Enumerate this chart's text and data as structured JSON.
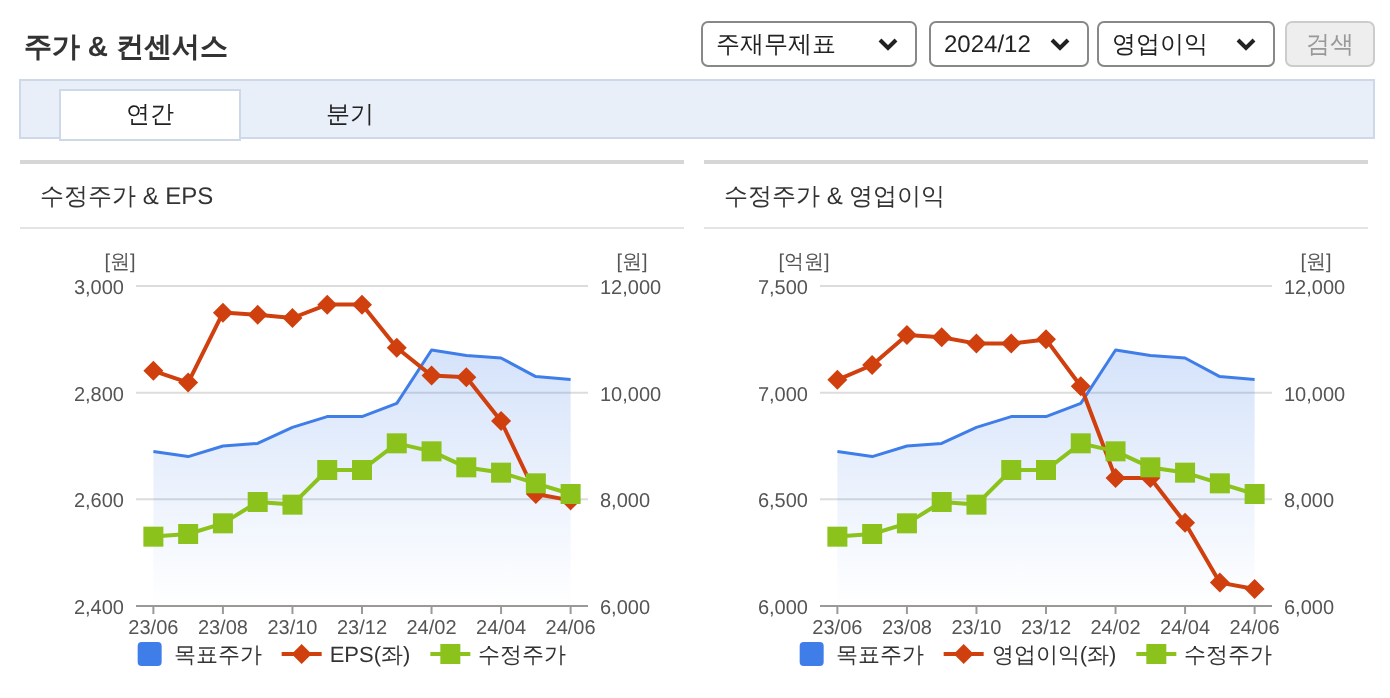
{
  "chart_data": [
    {
      "type": "other",
      "title": "주가 & 컨센서스",
      "annotations": [
        "주재무제표",
        "2024/12",
        "영업이익",
        "검색",
        "연간",
        "분기"
      ]
    },
    {
      "type": "line",
      "title": "수정주가 & EPS",
      "ylabel": "[원]",
      "y2label": "[원]",
      "categories": [
        "23/06",
        null,
        "23/08",
        null,
        "23/10",
        null,
        "23/12",
        null,
        "24/02",
        null,
        "24/04",
        null,
        "24/06"
      ],
      "series": [
        {
          "name": "목표주가",
          "type": "area",
          "axis": "y2",
          "color": "#3f7ee8",
          "values": [
            8900,
            8800,
            9000,
            9050,
            9350,
            9550,
            9550,
            9800,
            10800,
            10700,
            10650,
            10300,
            10250
          ]
        },
        {
          "name": "EPS(좌)",
          "type": "line",
          "marker": "diamond",
          "color": "#d0400f",
          "values": [
            2841,
            2819,
            2950,
            2946,
            2940,
            2965,
            2965,
            2884,
            2832,
            2829,
            2747,
            2610,
            2598
          ]
        },
        {
          "name": "수정주가",
          "type": "line",
          "axis": "y2",
          "marker": "square",
          "color": "#8bc21c",
          "values": [
            7300,
            7350,
            7550,
            7950,
            7900,
            8550,
            8550,
            9050,
            8900,
            8600,
            8500,
            8300,
            8100
          ]
        }
      ],
      "ylim": [
        2400,
        3000
      ],
      "yticks": [
        {
          "value": 2400,
          "label": "2,400"
        },
        {
          "value": 2600,
          "label": "2,600"
        },
        {
          "value": 2800,
          "label": "2,800"
        },
        {
          "value": 3000,
          "label": "3,000"
        }
      ],
      "y2lim": [
        6000,
        12000
      ],
      "y2ticks": [
        {
          "value": 6000,
          "label": "6,000"
        },
        {
          "value": 8000,
          "label": "8,000"
        },
        {
          "value": 10000,
          "label": "10,000"
        },
        {
          "value": 12000,
          "label": "12,000"
        }
      ],
      "grid": "y",
      "legend": "bottom"
    },
    {
      "type": "line",
      "title": "수정주가 & 영업이익",
      "ylabel": "[억원]",
      "y2label": "[원]",
      "categories": [
        "23/06",
        null,
        "23/08",
        null,
        "23/10",
        null,
        "23/12",
        null,
        "24/02",
        null,
        "24/04",
        null,
        "24/06"
      ],
      "series": [
        {
          "name": "목표주가",
          "type": "area",
          "axis": "y2",
          "color": "#3f7ee8",
          "values": [
            8900,
            8800,
            9000,
            9050,
            9350,
            9550,
            9550,
            9800,
            10800,
            10700,
            10650,
            10300,
            10250
          ]
        },
        {
          "name": "영업이익(좌)",
          "type": "line",
          "marker": "diamond",
          "color": "#d0400f",
          "values": [
            7060,
            7130,
            7270,
            7260,
            7230,
            7230,
            7250,
            7030,
            6600,
            6600,
            6390,
            6110,
            6080
          ]
        },
        {
          "name": "수정주가",
          "type": "line",
          "axis": "y2",
          "marker": "square",
          "color": "#8bc21c",
          "values": [
            7300,
            7350,
            7550,
            7950,
            7900,
            8550,
            8550,
            9050,
            8900,
            8600,
            8500,
            8300,
            8100
          ]
        }
      ],
      "ylim": [
        6000,
        7500
      ],
      "yticks": [
        {
          "value": 6000,
          "label": "6,000"
        },
        {
          "value": 6500,
          "label": "6,500"
        },
        {
          "value": 7000,
          "label": "7,000"
        },
        {
          "value": 7500,
          "label": "7,500"
        }
      ],
      "y2lim": [
        6000,
        12000
      ],
      "y2ticks": [
        {
          "value": 6000,
          "label": "6,000"
        },
        {
          "value": 8000,
          "label": "8,000"
        },
        {
          "value": 10000,
          "label": "10,000"
        },
        {
          "value": 12000,
          "label": "12,000"
        }
      ],
      "grid": "y",
      "legend": "bottom"
    }
  ]
}
